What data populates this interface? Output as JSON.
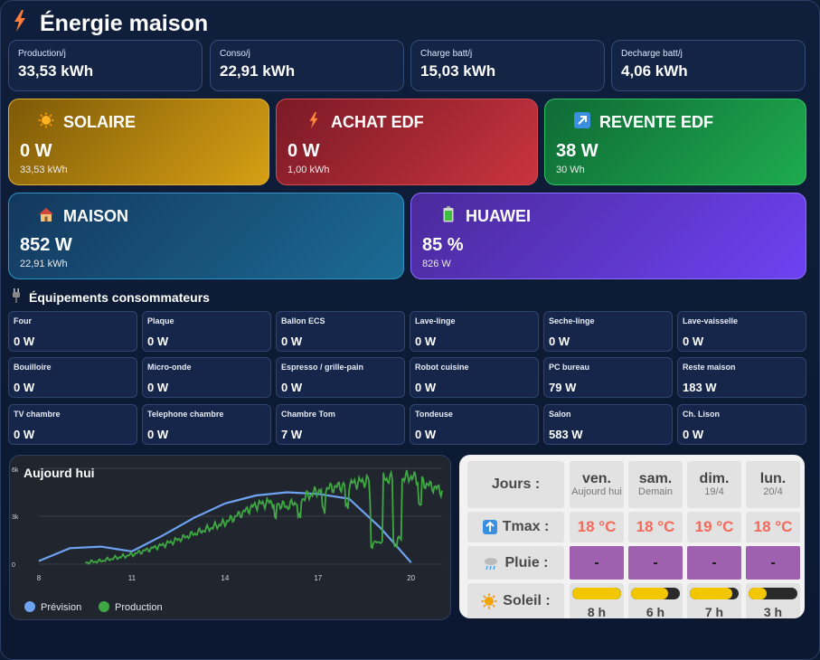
{
  "app": {
    "title": "Énergie maison",
    "title_icon": "lightning-icon"
  },
  "stats": [
    {
      "label": "Production/j",
      "value": "33,53 kWh"
    },
    {
      "label": "Conso/j",
      "value": "22,91 kWh"
    },
    {
      "label": "Charge batt/j",
      "value": "15,03 kWh"
    },
    {
      "label": "Decharge batt/j",
      "value": "4,06 kWh"
    }
  ],
  "cards": {
    "solaire": {
      "title": "SOLAIRE",
      "value": "0 W",
      "sub": "33,53 kWh",
      "icon": "sun-icon",
      "color": "#c4900f"
    },
    "achat": {
      "title": "ACHAT EDF",
      "value": "0 W",
      "sub": "1,00 kWh",
      "icon": "lightning-icon",
      "color": "#b5303a"
    },
    "revente": {
      "title": "REVENTE EDF",
      "value": "38 W",
      "sub": "30 Wh",
      "icon": "arrow-up-right-icon",
      "color": "#169a45"
    },
    "maison": {
      "title": "MAISON",
      "value": "852 W",
      "sub": "22,91 kWh",
      "icon": "house-icon",
      "color": "#1c5f8d"
    },
    "huawei": {
      "title": "HUAWEI",
      "value": "85 %",
      "sub": "826 W",
      "icon": "battery-icon",
      "color": "#6a3ff0"
    }
  },
  "equipements": {
    "title": "Équipements consommateurs",
    "icon": "plug-icon",
    "items": [
      {
        "name": "Four",
        "value": "0 W"
      },
      {
        "name": "Plaque",
        "value": "0 W"
      },
      {
        "name": "Ballon ECS",
        "value": "0 W"
      },
      {
        "name": "Lave-linge",
        "value": "0 W"
      },
      {
        "name": "Seche-linge",
        "value": "0 W"
      },
      {
        "name": "Lave-vaisselle",
        "value": "0 W"
      },
      {
        "name": "Bouilloire",
        "value": "0 W"
      },
      {
        "name": "Micro-onde",
        "value": "0 W"
      },
      {
        "name": "Espresso / grille-pain",
        "value": "0 W"
      },
      {
        "name": "Robot cuisine",
        "value": "0 W"
      },
      {
        "name": "PC bureau",
        "value": "79 W"
      },
      {
        "name": "Reste maison",
        "value": "183 W"
      },
      {
        "name": "TV chambre",
        "value": "0 W"
      },
      {
        "name": "Telephone chambre",
        "value": "0 W"
      },
      {
        "name": "Chambre Tom",
        "value": "7 W"
      },
      {
        "name": "Tondeuse",
        "value": "0 W"
      },
      {
        "name": "Salon",
        "value": "583 W"
      },
      {
        "name": "Ch. Lison",
        "value": "0 W"
      }
    ]
  },
  "chart_data": {
    "type": "line",
    "title": "Aujourd hui",
    "x_ticks": [
      "8",
      "11",
      "14",
      "17",
      "20"
    ],
    "y_ticks": [
      "0",
      "3k",
      "6k"
    ],
    "xlim": [
      8,
      21
    ],
    "ylim": [
      0,
      6000
    ],
    "series": [
      {
        "name": "Prévision",
        "color": "#6ea3f2",
        "x": [
          8,
          9,
          10,
          11,
          12,
          13,
          14,
          15,
          16,
          17,
          18,
          19,
          20
        ],
        "y": [
          200,
          1000,
          1100,
          800,
          1800,
          2900,
          3800,
          4300,
          4500,
          4400,
          4100,
          2300,
          100
        ]
      },
      {
        "name": "Production",
        "color": "#3fa843",
        "x": [
          9.5,
          10,
          11,
          12,
          13,
          14,
          15,
          15.5,
          16,
          16.5,
          17,
          17.5,
          18,
          18.5,
          19,
          19.5,
          20,
          20.5,
          21
        ],
        "y": [
          100,
          200,
          600,
          1200,
          1900,
          2600,
          3700,
          3900,
          3600,
          4100,
          4600,
          4800,
          5000,
          5200,
          5400,
          5300,
          5500,
          5000,
          4600
        ]
      }
    ]
  },
  "weather": {
    "row_labels": {
      "days": "Jours :",
      "tmax": "Tmax :",
      "pluie": "Pluie :",
      "soleil": "Soleil :"
    },
    "icons": {
      "tmax": "thermometer-up-icon",
      "pluie": "rain-cloud-icon",
      "soleil": "sun-icon"
    },
    "days": [
      {
        "name": "ven.",
        "sub": "Aujourd hui",
        "tmax": "18 °C",
        "pluie": "-",
        "sun_fraction": 1.0,
        "sun_hours": "8 h"
      },
      {
        "name": "sam.",
        "sub": "Demain",
        "tmax": "18 °C",
        "pluie": "-",
        "sun_fraction": 0.75,
        "sun_hours": "6 h"
      },
      {
        "name": "dim.",
        "sub": "19/4",
        "tmax": "19 °C",
        "pluie": "-",
        "sun_fraction": 0.875,
        "sun_hours": "7 h"
      },
      {
        "name": "lun.",
        "sub": "20/4",
        "tmax": "18 °C",
        "pluie": "-",
        "sun_fraction": 0.375,
        "sun_hours": "3 h"
      }
    ]
  }
}
